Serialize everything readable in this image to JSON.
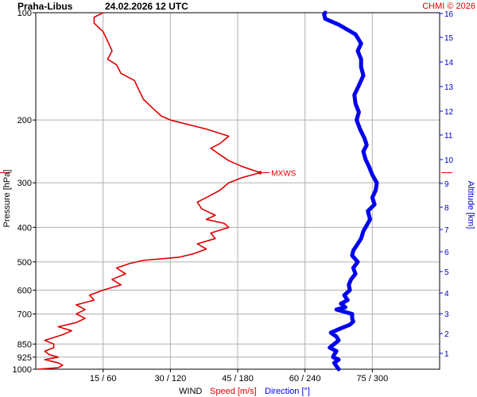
{
  "header": {
    "station": "Praha-Libus",
    "datetime": "24.02.2026 12 UTC",
    "credit": "CHMI © 2026"
  },
  "colors": {
    "speed": "#e00000",
    "direction": "#0000ee",
    "grid": "#b0b0b0",
    "axis": "#000000",
    "altitude_axis": "#0000cc"
  },
  "chart_data": {
    "type": "line",
    "left_axis": {
      "label": "Pressure [hPa]",
      "scale": "log",
      "ticks": [
        100,
        200,
        300,
        400,
        500,
        600,
        700,
        850,
        925,
        1000
      ],
      "range": [
        100,
        1000
      ]
    },
    "right_axis": {
      "label": "Altitude [km]",
      "ticks": [
        1,
        2,
        3,
        4,
        5,
        6,
        7,
        8,
        9,
        10,
        11,
        12,
        13,
        14,
        15,
        16
      ]
    },
    "bottom_axis": {
      "ticks": [
        "15 / 60",
        "30 / 120",
        "45 / 180",
        "60 / 240",
        "75 / 300"
      ],
      "speed_values": [
        15,
        30,
        45,
        60,
        75
      ],
      "speed_range": [
        0,
        90
      ],
      "direction_range": [
        0,
        360
      ],
      "label_parts": [
        "WIND",
        "Speed [m/s]",
        "Direction [°]"
      ]
    },
    "mxws": {
      "label": "MXWS",
      "pressure": 281,
      "speed": 50
    },
    "series": [
      {
        "name": "Speed [m/s]",
        "points": [
          [
            1000,
            0.5
          ],
          [
            990,
            5
          ],
          [
            975,
            6
          ],
          [
            960,
            5
          ],
          [
            940,
            2
          ],
          [
            925,
            5
          ],
          [
            910,
            3
          ],
          [
            890,
            2
          ],
          [
            870,
            4
          ],
          [
            850,
            4
          ],
          [
            830,
            2
          ],
          [
            800,
            6
          ],
          [
            780,
            8
          ],
          [
            760,
            5
          ],
          [
            740,
            9
          ],
          [
            720,
            11
          ],
          [
            700,
            9
          ],
          [
            680,
            11
          ],
          [
            660,
            9
          ],
          [
            640,
            13
          ],
          [
            620,
            12
          ],
          [
            600,
            15
          ],
          [
            580,
            19
          ],
          [
            560,
            17
          ],
          [
            540,
            20
          ],
          [
            520,
            18
          ],
          [
            505,
            21
          ],
          [
            495,
            24
          ],
          [
            490,
            28
          ],
          [
            485,
            32
          ],
          [
            475,
            35
          ],
          [
            460,
            38
          ],
          [
            445,
            36
          ],
          [
            430,
            40
          ],
          [
            415,
            39
          ],
          [
            400,
            43
          ],
          [
            390,
            42
          ],
          [
            380,
            38
          ],
          [
            370,
            40
          ],
          [
            355,
            37
          ],
          [
            340,
            36
          ],
          [
            330,
            38
          ],
          [
            315,
            41
          ],
          [
            300,
            43
          ],
          [
            290,
            46
          ],
          [
            281,
            50
          ],
          [
            270,
            46
          ],
          [
            260,
            43
          ],
          [
            250,
            41
          ],
          [
            240,
            39
          ],
          [
            233,
            41
          ],
          [
            222,
            43
          ],
          [
            212,
            38
          ],
          [
            200,
            30
          ],
          [
            195,
            28
          ],
          [
            185,
            26
          ],
          [
            175,
            24
          ],
          [
            165,
            23
          ],
          [
            155,
            22
          ],
          [
            148,
            19
          ],
          [
            140,
            18
          ],
          [
            135,
            16
          ],
          [
            128,
            17
          ],
          [
            120,
            16
          ],
          [
            113,
            15
          ],
          [
            107,
            13
          ],
          [
            103,
            13
          ],
          [
            100,
            15
          ]
        ]
      },
      {
        "name": "Direction [°]",
        "points": [
          [
            1000,
            270
          ],
          [
            980,
            268
          ],
          [
            960,
            266
          ],
          [
            940,
            270
          ],
          [
            925,
            265
          ],
          [
            910,
            266
          ],
          [
            890,
            268
          ],
          [
            870,
            262
          ],
          [
            850,
            266
          ],
          [
            830,
            270
          ],
          [
            810,
            268
          ],
          [
            790,
            263
          ],
          [
            770,
            271
          ],
          [
            750,
            280
          ],
          [
            735,
            283
          ],
          [
            720,
            282
          ],
          [
            700,
            282
          ],
          [
            690,
            275
          ],
          [
            680,
            268
          ],
          [
            670,
            276
          ],
          [
            655,
            272
          ],
          [
            640,
            278
          ],
          [
            620,
            275
          ],
          [
            600,
            280
          ],
          [
            580,
            279
          ],
          [
            560,
            281
          ],
          [
            540,
            285
          ],
          [
            520,
            283
          ],
          [
            500,
            287
          ],
          [
            480,
            282
          ],
          [
            465,
            283
          ],
          [
            450,
            286
          ],
          [
            430,
            290
          ],
          [
            410,
            292
          ],
          [
            395,
            295
          ],
          [
            380,
            298
          ],
          [
            360,
            296
          ],
          [
            345,
            302
          ],
          [
            330,
            300
          ],
          [
            315,
            303
          ],
          [
            300,
            304
          ],
          [
            285,
            300
          ],
          [
            270,
            297
          ],
          [
            258,
            294
          ],
          [
            245,
            292
          ],
          [
            235,
            295
          ],
          [
            225,
            293
          ],
          [
            212,
            289
          ],
          [
            200,
            286
          ],
          [
            190,
            288
          ],
          [
            180,
            285
          ],
          [
            170,
            284
          ],
          [
            160,
            288
          ],
          [
            150,
            292
          ],
          [
            142,
            290
          ],
          [
            135,
            290
          ],
          [
            128,
            287
          ],
          [
            122,
            290
          ],
          [
            115,
            285
          ],
          [
            108,
            270
          ],
          [
            104,
            258
          ],
          [
            101,
            257
          ],
          [
            100,
            258
          ]
        ]
      }
    ]
  }
}
